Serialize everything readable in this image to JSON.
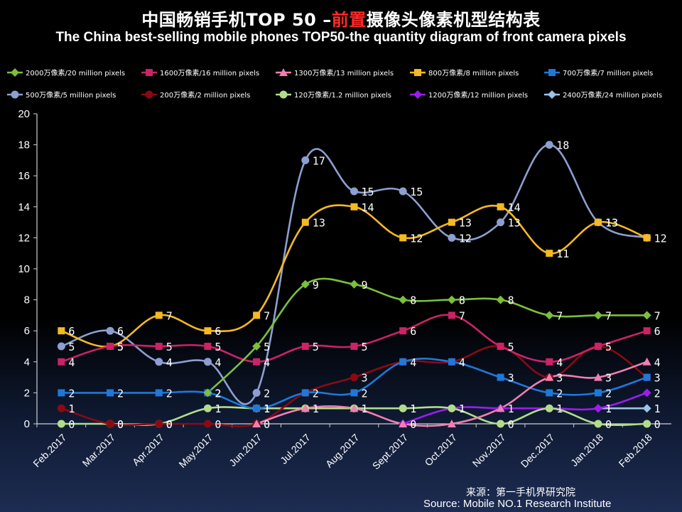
{
  "title": {
    "cn_pre": "中国畅销手机TOP 50 –",
    "cn_highlight": "前置",
    "cn_post": "摄像头像素机型结构表",
    "en": "The China best-selling mobile phones TOP50-the quantity diagram of front camera pixels"
  },
  "source": {
    "cn": "来源：第一手机界研究院",
    "en": "Source: Mobile NO.1 Research Institute"
  },
  "chart_data": {
    "type": "line",
    "categories": [
      "Feb.2017",
      "Mar.2017",
      "Apr.2017",
      "May.2017",
      "Jun.2017",
      "Jul.2017",
      "Aug.2017",
      "Sept.2017",
      "Oct.2017",
      "Nov.2017",
      "Dec.2017",
      "Jan.2018",
      "Feb.2018"
    ],
    "ylim": [
      0,
      20
    ],
    "yticks": [
      "0",
      "2",
      "4",
      "6",
      "8",
      "10",
      "12",
      "14",
      "16",
      "18",
      "20"
    ],
    "grid": false,
    "legend_position": "top",
    "series": [
      {
        "name": "2000万像素/20 million pixels",
        "color": "#7cbf3c",
        "marker": "diamond",
        "values": [
          null,
          null,
          null,
          2,
          5,
          9,
          9,
          8,
          8,
          8,
          7,
          7,
          7
        ],
        "labels": [
          "",
          "",
          "",
          "2",
          "5",
          "9",
          "9",
          "8",
          "8",
          "8",
          "7",
          "7",
          "7"
        ]
      },
      {
        "name": "1600万像素/16 million pixels",
        "color": "#cc2266",
        "marker": "square",
        "values": [
          4,
          5,
          5,
          5,
          4,
          5,
          5,
          6,
          7,
          5,
          4,
          5,
          6
        ],
        "labels": [
          "4",
          "5",
          "5",
          "5",
          "4",
          "5",
          "5",
          "6",
          "7",
          "5",
          "4",
          "5",
          "6"
        ]
      },
      {
        "name": "1300万像素/13 million pixels",
        "color": "#f07fb0",
        "marker": "triangle",
        "values": [
          null,
          null,
          null,
          null,
          0,
          1,
          1,
          0,
          0,
          1,
          3,
          3,
          4
        ],
        "labels": [
          "",
          "",
          "",
          "",
          "",
          "",
          "",
          "",
          "",
          "",
          "",
          "3",
          "4"
        ]
      },
      {
        "name": "800万像素/8 million pixels",
        "color": "#f5b921",
        "marker": "square",
        "values": [
          6,
          5,
          7,
          6,
          7,
          13,
          14,
          12,
          13,
          14,
          11,
          13,
          12
        ],
        "labels": [
          "6",
          "5",
          "7",
          "6",
          "7",
          "13",
          "14",
          "12",
          "13",
          "14",
          "11",
          "13",
          ""
        ]
      },
      {
        "name": "700万像素/7 million pixels",
        "color": "#1f78d8",
        "marker": "square",
        "values": [
          2,
          2,
          2,
          2,
          1,
          2,
          2,
          4,
          4,
          3,
          2,
          2,
          3
        ],
        "labels": [
          "2",
          "2",
          "2",
          "2",
          "1",
          "2",
          "2",
          "4",
          "4",
          "3",
          "2",
          "2",
          "3"
        ]
      },
      {
        "name": "500万像素/5 million pixels",
        "color": "#8d9fd0",
        "marker": "circle",
        "values": [
          5,
          6,
          4,
          4,
          2,
          17,
          15,
          15,
          12,
          13,
          18,
          13,
          12
        ],
        "labels": [
          "5",
          "6",
          "4",
          "4",
          "2",
          "17",
          "15",
          "15",
          "12",
          "13",
          "18",
          "13",
          "12"
        ]
      },
      {
        "name": "200万像素/2 million pixels",
        "color": "#8b0a12",
        "marker": "circle",
        "values": [
          1,
          0,
          0,
          0,
          0,
          2,
          3,
          4,
          4,
          5,
          3,
          5,
          3
        ],
        "labels": [
          "1",
          "0",
          "0",
          "0",
          "0",
          "",
          "3",
          "",
          "",
          "",
          "3",
          "",
          ""
        ]
      },
      {
        "name": "120万像素/1.2 million pixels",
        "color": "#b2dc8a",
        "marker": "circle",
        "values": [
          0,
          0,
          0,
          1,
          1,
          1,
          1,
          1,
          1,
          0,
          1,
          0,
          0
        ],
        "labels": [
          "0",
          "0",
          "0",
          "1",
          "1",
          "1",
          "1",
          "1",
          "1",
          "0",
          "1",
          "0",
          "0"
        ]
      },
      {
        "name": "1200万像素/12 million pixels",
        "color": "#9b1cf0",
        "marker": "diamond",
        "values": [
          null,
          null,
          null,
          null,
          null,
          null,
          null,
          0,
          1,
          1,
          1,
          1,
          2
        ],
        "labels": [
          "",
          "",
          "",
          "",
          "",
          "",
          "",
          "0",
          "",
          "1",
          "",
          "",
          "2"
        ]
      },
      {
        "name": "2400万像素/24 million pixels",
        "color": "#9cc3e8",
        "marker": "diamond",
        "values": [
          null,
          null,
          null,
          null,
          null,
          null,
          null,
          null,
          null,
          null,
          null,
          1,
          1
        ],
        "labels": [
          "",
          "",
          "",
          "",
          "",
          "",
          "",
          "",
          "",
          "",
          "",
          "1",
          "1"
        ]
      }
    ]
  }
}
